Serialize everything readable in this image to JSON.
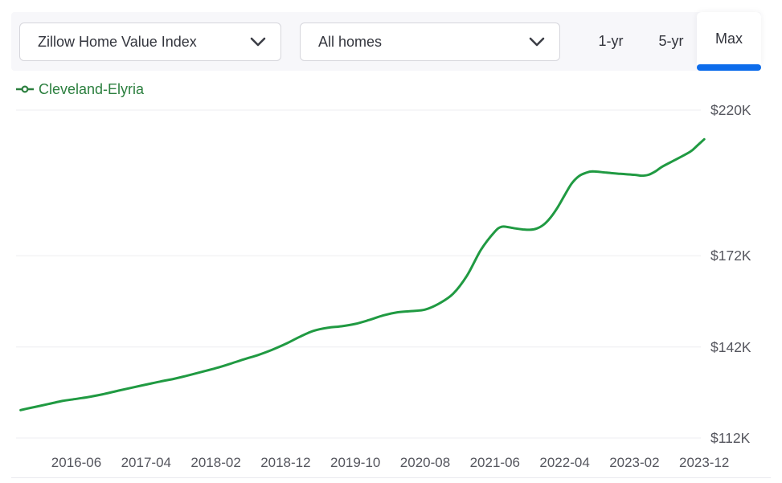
{
  "toolbar": {
    "metric_dropdown": {
      "value": "Zillow Home Value Index"
    },
    "homes_dropdown": {
      "value": "All homes"
    },
    "range_buttons": [
      {
        "label": "1-yr",
        "active": false
      },
      {
        "label": "5-yr",
        "active": false
      },
      {
        "label": "Max",
        "active": true
      }
    ]
  },
  "legend": {
    "label": "Cleveland-Elyria"
  },
  "colors": {
    "line_green": "#209a42",
    "legend_green": "#2b7f3e",
    "active_tab_blue": "#0d6ceb",
    "toolbar_bg": "#f7f7fa",
    "grid": "#ededf0",
    "axis_text": "#55565e"
  },
  "chart_data": {
    "type": "line",
    "title": "",
    "xlabel": "",
    "ylabel": "",
    "grid": "horizontal",
    "legend_position": "top-left",
    "ylim_k": [
      112,
      220
    ],
    "y_ticks": [
      {
        "label": "$220K",
        "value": 220
      },
      {
        "label": "$172K",
        "value": 172
      },
      {
        "label": "$142K",
        "value": 142
      },
      {
        "label": "$112K",
        "value": 112
      }
    ],
    "x_ticks": [
      "2016-06",
      "2017-04",
      "2018-02",
      "2018-12",
      "2019-10",
      "2020-08",
      "2021-06",
      "2022-04",
      "2023-02",
      "2023-12"
    ],
    "series": [
      {
        "name": "Cleveland-Elyria",
        "x": [
          "2015-10",
          "2015-12",
          "2016-02",
          "2016-04",
          "2016-06",
          "2016-08",
          "2016-10",
          "2016-12",
          "2017-02",
          "2017-04",
          "2017-06",
          "2017-08",
          "2017-10",
          "2017-12",
          "2018-02",
          "2018-04",
          "2018-06",
          "2018-08",
          "2018-10",
          "2018-12",
          "2019-02",
          "2019-04",
          "2019-06",
          "2019-08",
          "2019-10",
          "2019-12",
          "2020-02",
          "2020-04",
          "2020-06",
          "2020-08",
          "2020-10",
          "2020-12",
          "2021-02",
          "2021-04",
          "2021-06",
          "2021-07",
          "2021-08",
          "2021-09",
          "2021-10",
          "2021-11",
          "2021-12",
          "2022-01",
          "2022-02",
          "2022-03",
          "2022-04",
          "2022-05",
          "2022-06",
          "2022-07",
          "2022-08",
          "2022-10",
          "2022-12",
          "2023-02",
          "2023-03",
          "2023-04",
          "2023-05",
          "2023-06",
          "2023-08",
          "2023-10",
          "2023-11",
          "2023-12"
        ],
        "values_k": [
          121.2,
          122.2,
          123.2,
          124.2,
          124.9,
          125.6,
          126.5,
          127.6,
          128.6,
          129.6,
          130.6,
          131.5,
          132.6,
          133.8,
          135.0,
          136.4,
          137.9,
          139.3,
          141.0,
          143.0,
          145.3,
          147.3,
          148.3,
          148.8,
          149.6,
          150.9,
          152.4,
          153.4,
          153.8,
          154.3,
          156.3,
          159.5,
          165.5,
          174.0,
          180.0,
          181.6,
          181.4,
          181.0,
          180.7,
          180.6,
          181.0,
          182.3,
          184.7,
          188.0,
          192.0,
          195.8,
          198.2,
          199.3,
          199.8,
          199.4,
          199.0,
          198.7,
          198.4,
          198.7,
          199.8,
          201.4,
          203.8,
          206.3,
          208.3,
          210.4
        ]
      }
    ]
  }
}
